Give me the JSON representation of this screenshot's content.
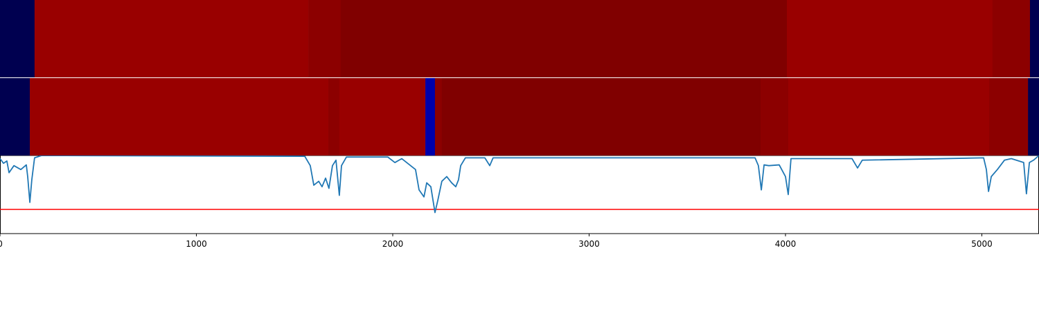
{
  "chart_data": {
    "type": "line",
    "xlim": [
      0,
      5291
    ],
    "xticks": [
      0,
      1000,
      2000,
      3000,
      4000,
      5000
    ],
    "ylim": [
      0,
      1
    ],
    "threshold": 0.31,
    "threshold_color": "#ff0000",
    "series": [
      {
        "color": "#1f77b4",
        "x": [
          0,
          18,
          35,
          46,
          71,
          106,
          134,
          141,
          152,
          162,
          176,
          212,
          1552,
          1580,
          1598,
          1623,
          1640,
          1658,
          1675,
          1693,
          1711,
          1728,
          1739,
          1764,
          1975,
          2011,
          2046,
          2116,
          2134,
          2159,
          2173,
          2194,
          2215,
          2229,
          2250,
          2275,
          2300,
          2321,
          2335,
          2346,
          2370,
          2469,
          2494,
          2511,
          3845,
          3862,
          3877,
          3891,
          3915,
          3968,
          4000,
          4014,
          4028,
          4339,
          4367,
          4391,
          5009,
          5023,
          5034,
          5048,
          5079,
          5115,
          5150,
          5213,
          5227,
          5242,
          5263,
          5291
        ],
        "values": [
          0.96,
          0.9,
          0.93,
          0.78,
          0.87,
          0.82,
          0.88,
          0.73,
          0.4,
          0.69,
          0.97,
          1.0,
          0.99,
          0.87,
          0.62,
          0.67,
          0.6,
          0.71,
          0.58,
          0.87,
          0.94,
          0.49,
          0.87,
          0.98,
          0.98,
          0.91,
          0.96,
          0.82,
          0.56,
          0.47,
          0.65,
          0.6,
          0.27,
          0.42,
          0.67,
          0.73,
          0.65,
          0.6,
          0.69,
          0.87,
          0.97,
          0.97,
          0.87,
          0.97,
          0.97,
          0.87,
          0.56,
          0.88,
          0.87,
          0.88,
          0.73,
          0.5,
          0.96,
          0.96,
          0.84,
          0.94,
          0.97,
          0.82,
          0.54,
          0.73,
          0.82,
          0.94,
          0.96,
          0.91,
          0.51,
          0.91,
          0.94,
          1.0
        ]
      }
    ],
    "strips": [
      {
        "segments": [
          {
            "start": 0,
            "end": 176,
            "color": "#000050"
          },
          {
            "start": 176,
            "end": 1570,
            "color": "#990000"
          },
          {
            "start": 1570,
            "end": 1735,
            "color": "#8c0000"
          },
          {
            "start": 1735,
            "end": 4007,
            "color": "#800000"
          },
          {
            "start": 4007,
            "end": 5054,
            "color": "#990000"
          },
          {
            "start": 5054,
            "end": 5245,
            "color": "#8c0000"
          },
          {
            "start": 5245,
            "end": 5291,
            "color": "#000050"
          }
        ]
      },
      {
        "segments": [
          {
            "start": 0,
            "end": 152,
            "color": "#000050"
          },
          {
            "start": 152,
            "end": 1672,
            "color": "#990000"
          },
          {
            "start": 1672,
            "end": 1728,
            "color": "#8c0000"
          },
          {
            "start": 1728,
            "end": 2166,
            "color": "#990000"
          },
          {
            "start": 2166,
            "end": 2215,
            "color": "#0000aa"
          },
          {
            "start": 2215,
            "end": 2250,
            "color": "#8c0000"
          },
          {
            "start": 2250,
            "end": 3873,
            "color": "#800000"
          },
          {
            "start": 3873,
            "end": 4014,
            "color": "#8c0000"
          },
          {
            "start": 4014,
            "end": 5037,
            "color": "#990000"
          },
          {
            "start": 5037,
            "end": 5235,
            "color": "#8c0000"
          },
          {
            "start": 5235,
            "end": 5291,
            "color": "#000050"
          }
        ]
      }
    ]
  }
}
